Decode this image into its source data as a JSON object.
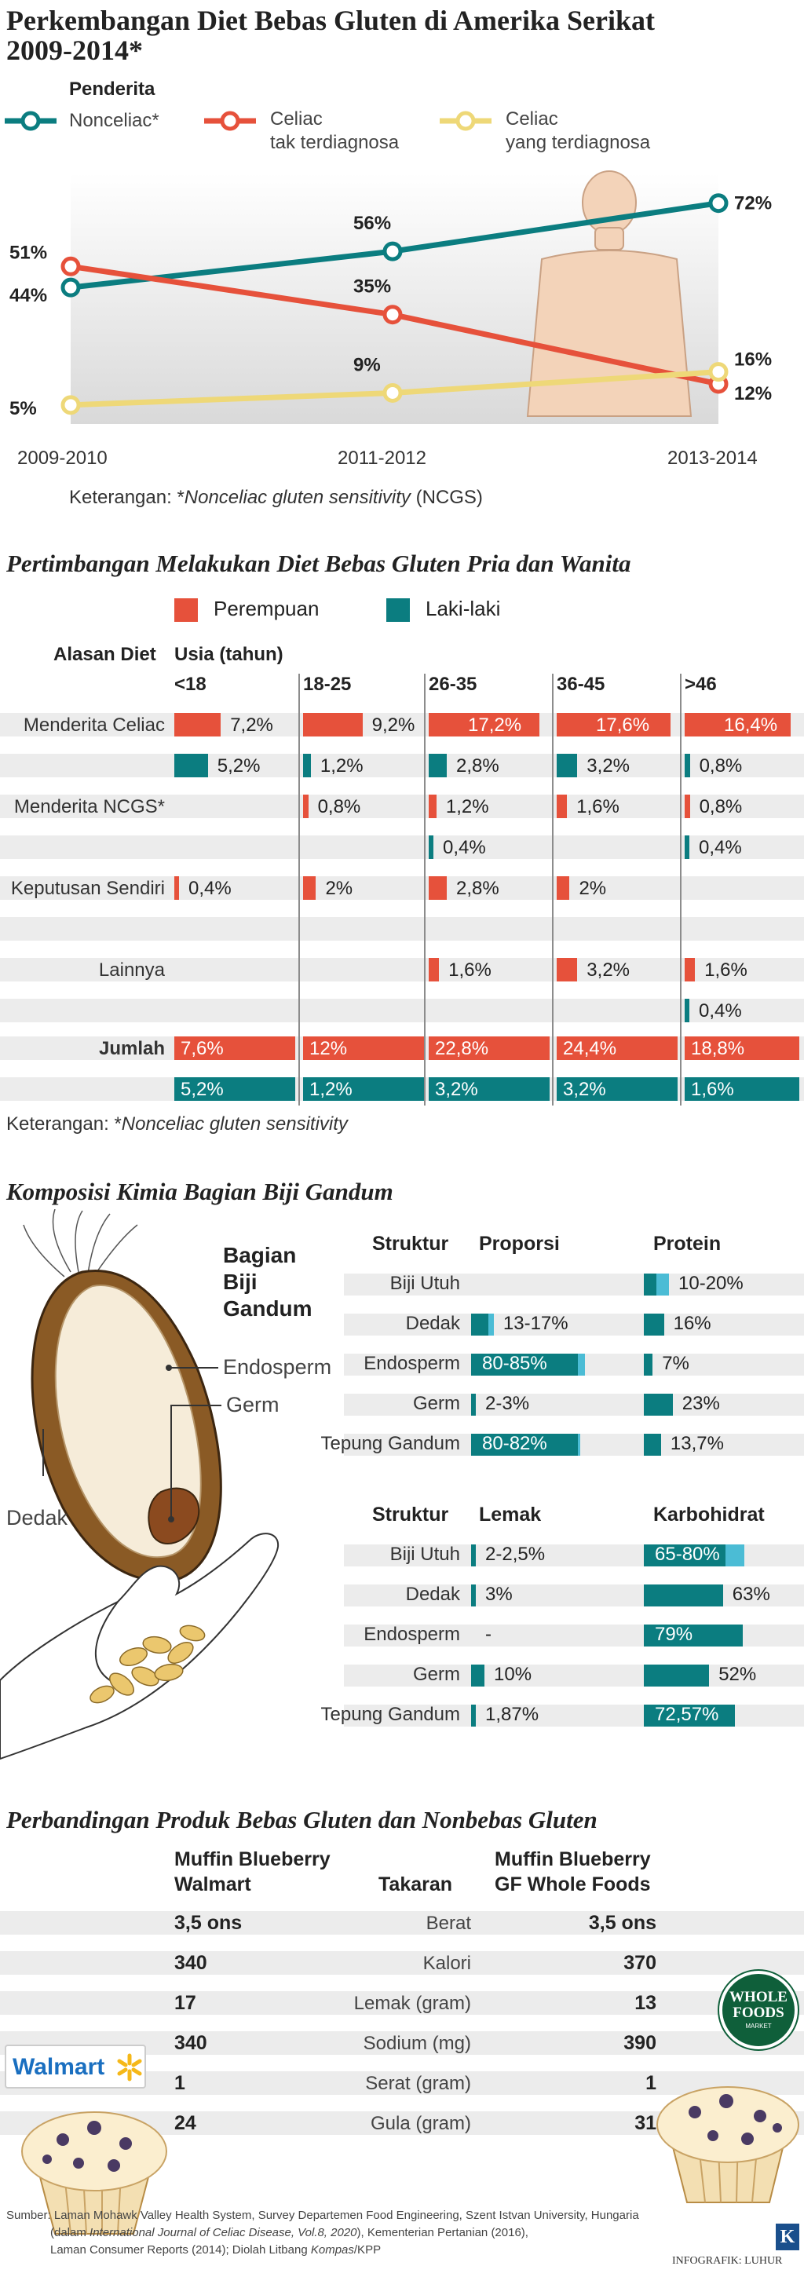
{
  "colors": {
    "teal": "#0b7d80",
    "orange": "#e6513b",
    "yellow": "#eed878",
    "light_blue": "#4bbcd5",
    "stripe": "#ececec"
  },
  "icons": [
    "human-silhouette-icon",
    "wheat-grain-icon",
    "hand-icon",
    "walmart-logo-icon",
    "whole-foods-logo-icon",
    "muffin-icon",
    "kompas-k-logo-icon"
  ],
  "section1": {
    "title_line1": "Perkembangan Diet Bebas Gluten di Amerika Serikat",
    "title_line2": "2009-2014*",
    "legend_title": "Penderita",
    "legend": [
      {
        "line1": "Nonceliac*",
        "line2": ""
      },
      {
        "line1": "Celiac",
        "line2": "tak terdiagnosa"
      },
      {
        "line1": "Celiac",
        "line2": "yang terdiagnosa"
      }
    ],
    "note_prefix": "Keterangan: *",
    "note_italic": "Nonceliac gluten sensitivity",
    "note_suffix": " (NCGS)"
  },
  "chart_data": [
    {
      "type": "line",
      "title": "Perkembangan Diet Bebas Gluten di Amerika Serikat 2009-2014*",
      "categories": [
        "2009-2010",
        "2011-2012",
        "2013-2014"
      ],
      "series": [
        {
          "name": "Nonceliac*",
          "values": [
            44,
            56,
            72
          ],
          "labels": [
            "44%",
            "56%",
            "72%"
          ]
        },
        {
          "name": "Celiac tak terdiagnosa",
          "values": [
            51,
            35,
            12
          ],
          "labels": [
            "51%",
            "35%",
            "12%"
          ]
        },
        {
          "name": "Celiac yang terdiagnosa",
          "values": [
            5,
            9,
            16
          ],
          "labels": [
            "5%",
            "9%",
            "16%"
          ]
        }
      ],
      "ylim": [
        0,
        80
      ]
    },
    {
      "type": "bar",
      "title": "Pertimbangan Melakukan Diet Bebas Gluten Pria dan Wanita",
      "legend": [
        "Perempuan",
        "Laki-laki"
      ],
      "header_reason": "Alasan Diet",
      "header_age": "Usia (tahun)",
      "age_groups": [
        "<18",
        "18-25",
        "26-35",
        "36-45",
        ">46"
      ],
      "rows": [
        {
          "reason": "Menderita Celiac",
          "female": [
            7.2,
            9.2,
            17.2,
            17.6,
            16.4
          ],
          "female_labels": [
            "7,2%",
            "9,2%",
            "17,2%",
            "17,6%",
            "16,4%"
          ],
          "male": [
            5.2,
            1.2,
            2.8,
            3.2,
            0.8
          ],
          "male_labels": [
            "5,2%",
            "1,2%",
            "2,8%",
            "3,2%",
            "0,8%"
          ]
        },
        {
          "reason": "Menderita NCGS*",
          "female": [
            null,
            0.8,
            1.2,
            1.6,
            0.8
          ],
          "female_labels": [
            "",
            "0,8%",
            "1,2%",
            "1,6%",
            "0,8%"
          ],
          "male": [
            null,
            null,
            0.4,
            null,
            0.4
          ],
          "male_labels": [
            "",
            "",
            "0,4%",
            "",
            "0,4%"
          ]
        },
        {
          "reason": "Keputusan Sendiri",
          "female": [
            0.4,
            2,
            2.8,
            2,
            null
          ],
          "female_labels": [
            "0,4%",
            "2%",
            "2,8%",
            "2%",
            ""
          ],
          "male": [
            null,
            null,
            null,
            null,
            null
          ],
          "male_labels": [
            "",
            "",
            "",
            "",
            ""
          ]
        },
        {
          "reason": "Lainnya",
          "female": [
            null,
            null,
            1.6,
            3.2,
            1.6
          ],
          "female_labels": [
            "",
            "",
            "1,6%",
            "3,2%",
            "1,6%"
          ],
          "male": [
            null,
            null,
            null,
            null,
            0.4
          ],
          "male_labels": [
            "",
            "",
            "",
            "",
            "0,4%"
          ]
        }
      ],
      "total": {
        "reason": "Jumlah",
        "female_labels": [
          "7,6%",
          "12%",
          "22,8%",
          "24,4%",
          "18,8%"
        ],
        "male_labels": [
          "5,2%",
          "1,2%",
          "3,2%",
          "3,2%",
          "1,6%"
        ]
      },
      "xlim": [
        0,
        18
      ]
    },
    {
      "type": "bar",
      "title": "Komposisi Kimia Bagian Biji Gandum",
      "structures": [
        "Biji Utuh",
        "Dedak",
        "Endosperm",
        "Germ",
        "Tepung Gandum"
      ],
      "tables": [
        {
          "title": "Proporsi",
          "ranges": [
            null,
            [
              13,
              17
            ],
            [
              80,
              85
            ],
            [
              2,
              3
            ],
            [
              80,
              82
            ]
          ],
          "labels": [
            "",
            "13-17%",
            "80-85%",
            "2-3%",
            "80-82%"
          ],
          "max": 100
        },
        {
          "title": "Protein",
          "ranges": [
            [
              10,
              20
            ],
            [
              16,
              16
            ],
            [
              7,
              7
            ],
            [
              23,
              23
            ],
            [
              13.7,
              13.7
            ]
          ],
          "labels": [
            "10-20%",
            "16%",
            "7%",
            "23%",
            "13,7%"
          ],
          "max": 100
        },
        {
          "title": "Lemak",
          "ranges": [
            [
              2,
              2.5
            ],
            [
              3,
              3
            ],
            [
              0,
              0
            ],
            [
              10,
              10
            ],
            [
              1.87,
              1.87
            ]
          ],
          "labels": [
            "2-2,5%",
            "3%",
            "-",
            "10%",
            "1,87%"
          ],
          "max": 100
        },
        {
          "title": "Karbohidrat",
          "ranges": [
            [
              65,
              80
            ],
            [
              63,
              63
            ],
            [
              79,
              79
            ],
            [
              52,
              52
            ],
            [
              72.57,
              72.57
            ]
          ],
          "labels": [
            "65-80%",
            "63%",
            "79%",
            "52%",
            "72,57%"
          ],
          "max": 100
        }
      ]
    }
  ],
  "section2": {
    "title": "Pertimbangan Melakukan Diet Bebas Gluten Pria dan Wanita",
    "note_prefix": "Keterangan: *",
    "note_italic": "Nonceliac gluten sensitivity"
  },
  "section3": {
    "title": "Komposisi Kimia Bagian Biji Gandum",
    "grain_title": [
      "Bagian",
      "Biji",
      "Gandum"
    ],
    "grain_labels": {
      "endosperm": "Endosperm",
      "germ": "Germ",
      "dedak": "Dedak"
    },
    "col_struktur": "Struktur"
  },
  "section4": {
    "title": "Perbandingan Produk Bebas Gluten dan Nonbebas Gluten",
    "left_header": [
      "Muffin Blueberry",
      "Walmart"
    ],
    "mid_header": "Takaran",
    "right_header": [
      "Muffin Blueberry",
      "GF Whole Foods"
    ],
    "rows": [
      {
        "left": "3,5 ons",
        "label": "Berat",
        "right": "3,5 ons"
      },
      {
        "left": "340",
        "label": "Kalori",
        "right": "370"
      },
      {
        "left": "17",
        "label": "Lemak (gram)",
        "right": "13"
      },
      {
        "left": "340",
        "label": "Sodium (mg)",
        "right": "390"
      },
      {
        "left": "1",
        "label": "Serat (gram)",
        "right": "1"
      },
      {
        "left": "24",
        "label": "Gula (gram)",
        "right": "31"
      }
    ],
    "walmart_logo": "Walmart",
    "wholefoods_logo": [
      "WHOLE",
      "FOODS",
      "MARKET"
    ]
  },
  "footer": {
    "line1": "Sumber: Laman Mohawk Valley Health System, Survey Departemen Food Engineering, Szent Istvan University, Hungaria",
    "line2_pre": "(dalam ",
    "line2_italic": "International Journal of Celiac Disease, Vol.8, 2020",
    "line2_post": "), Kementerian Pertanian (2016),",
    "line3_pre": "Laman Consumer Reports (2014); Diolah Litbang ",
    "line3_italic": "Kompas",
    "line3_post": "/KPP",
    "credit": "INFOGRAFIK: LUHUR",
    "logo_letter": "K"
  }
}
